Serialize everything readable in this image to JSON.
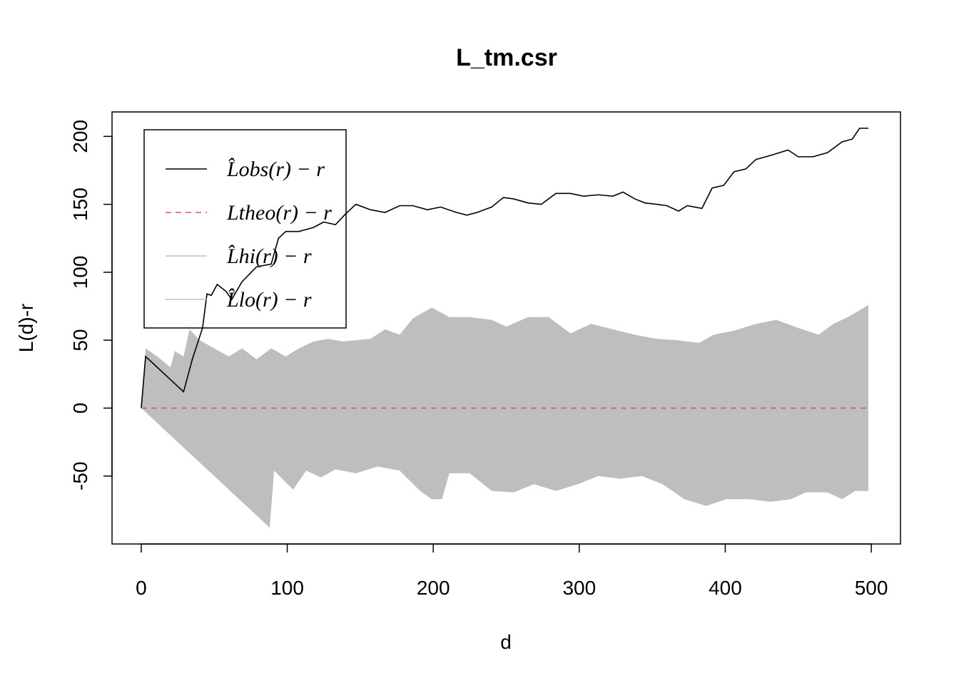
{
  "chart_data": {
    "type": "line",
    "title": "L_tm.csr",
    "x_label": "d",
    "y_label": "L(d)-r",
    "xlim": [
      -20,
      520
    ],
    "ylim": [
      -100,
      218
    ],
    "xticks": [
      0,
      100,
      200,
      300,
      400,
      500
    ],
    "yticks": [
      -50,
      0,
      50,
      100,
      150,
      200
    ],
    "legend": "top-left",
    "series": [
      {
        "name": "L̂obs(r) − r",
        "color": "#000000",
        "style": "line",
        "linestyle": "solid",
        "x": [
          0,
          3,
          29,
          35,
          42,
          45,
          48,
          52,
          58,
          62,
          69,
          79,
          89,
          94,
          99,
          108,
          118,
          125,
          133,
          140,
          147,
          157,
          167,
          177,
          186,
          196,
          205,
          216,
          223,
          230,
          240,
          248,
          255,
          265,
          274,
          284,
          294,
          303,
          313,
          323,
          330,
          338,
          345,
          353,
          360,
          368,
          374,
          384,
          391,
          399,
          406,
          414,
          421,
          431,
          443,
          450,
          460,
          470,
          480,
          487,
          492,
          498
        ],
        "values": [
          0,
          38,
          12,
          36,
          59,
          84,
          83,
          91,
          86,
          80,
          93,
          104,
          106,
          125,
          130,
          130,
          133,
          137,
          135,
          143,
          150,
          146,
          144,
          149,
          149,
          146,
          148,
          144,
          142,
          144,
          148,
          155,
          154,
          151,
          150,
          158,
          158,
          156,
          157,
          156,
          159,
          154,
          151,
          150,
          149,
          145,
          149,
          147,
          162,
          164,
          174,
          176,
          183,
          186,
          190,
          185,
          185,
          188,
          196,
          198,
          206,
          206
        ]
      },
      {
        "name": "Ltheo(r) − r",
        "color": "#DF536B",
        "style": "line",
        "linestyle": "dashed",
        "x": [
          0,
          498
        ],
        "values": [
          0,
          0
        ]
      },
      {
        "name": "L̂hi(r) − r",
        "color": "#BEBEBE",
        "style": "area",
        "linestyle": "solid",
        "x": [
          0,
          3,
          11,
          20,
          23,
          29,
          33,
          40,
          50,
          60,
          69,
          79,
          89,
          99,
          108,
          118,
          128,
          138,
          147,
          157,
          167,
          177,
          186,
          199,
          211,
          225,
          240,
          250,
          265,
          279,
          294,
          308,
          323,
          338,
          353,
          367,
          382,
          392,
          406,
          421,
          435,
          450,
          464,
          474,
          484,
          492,
          498
        ],
        "values": [
          0,
          44,
          38,
          30,
          42,
          38,
          58,
          50,
          44,
          38,
          44,
          36,
          44,
          38,
          44,
          49,
          51,
          49,
          50,
          51,
          58,
          54,
          66,
          74,
          67,
          67,
          65,
          60,
          67,
          67,
          55,
          62,
          58,
          54,
          51,
          50,
          48,
          54,
          57,
          62,
          65,
          59,
          54,
          62,
          67,
          72,
          76
        ]
      },
      {
        "name": "L̂lo(r) − r",
        "color": "#BEBEBE",
        "style": "area",
        "linestyle": "solid",
        "x": [
          0,
          88,
          91,
          104,
          113,
          123,
          133,
          147,
          162,
          177,
          191,
          199,
          206,
          211,
          225,
          240,
          255,
          269,
          284,
          299,
          313,
          328,
          343,
          357,
          372,
          387,
          401,
          416,
          431,
          445,
          455,
          470,
          480,
          489,
          498
        ],
        "values": [
          0,
          -88,
          -46,
          -60,
          -46,
          -51,
          -45,
          -48,
          -43,
          -46,
          -61,
          -67,
          -67,
          -48,
          -48,
          -61,
          -62,
          -56,
          -61,
          -56,
          -50,
          -52,
          -50,
          -56,
          -67,
          -72,
          -67,
          -67,
          -69,
          -67,
          -62,
          -62,
          -67,
          -61,
          -61
        ]
      }
    ]
  }
}
